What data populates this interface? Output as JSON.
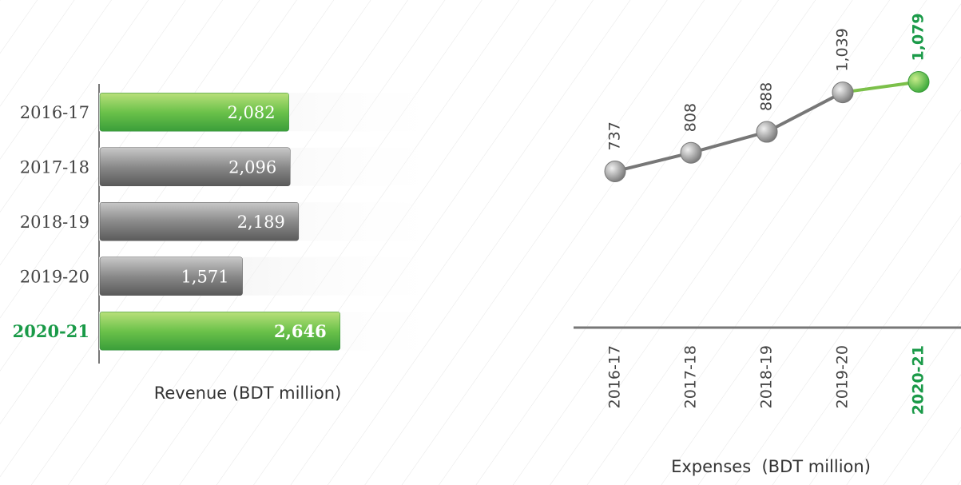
{
  "chart_data": [
    {
      "type": "hbar",
      "axis_label": "Revenue (BDT million)",
      "categories": [
        "2016-17",
        "2017-18",
        "2018-19",
        "2019-20",
        "2020-21"
      ],
      "values": [
        2082,
        2096,
        2189,
        1571,
        2646
      ],
      "value_labels": [
        "2,082",
        "2,096",
        "2,189",
        "1,571",
        "2,646"
      ],
      "colors": [
        "green",
        "gray",
        "gray",
        "gray",
        "green"
      ],
      "label_colors": [
        "#444444",
        "#444444",
        "#444444",
        "#444444",
        "#1a9a48"
      ],
      "xlim": [
        0,
        3000
      ]
    },
    {
      "type": "line",
      "axis_label": "Expenses  (BDT million)",
      "categories": [
        "2016-17",
        "2017-18",
        "2018-19",
        "2019-20",
        "2020-21"
      ],
      "values": [
        737,
        808,
        888,
        1039,
        1079
      ],
      "value_labels": [
        "737",
        "808",
        "888",
        "1,039",
        "1,079"
      ],
      "colors": [
        "gray",
        "gray",
        "gray",
        "gray",
        "green"
      ],
      "label_colors": [
        "#444444",
        "#444444",
        "#444444",
        "#444444",
        "#1a9a48"
      ],
      "ylim": [
        140,
        1140
      ]
    }
  ]
}
